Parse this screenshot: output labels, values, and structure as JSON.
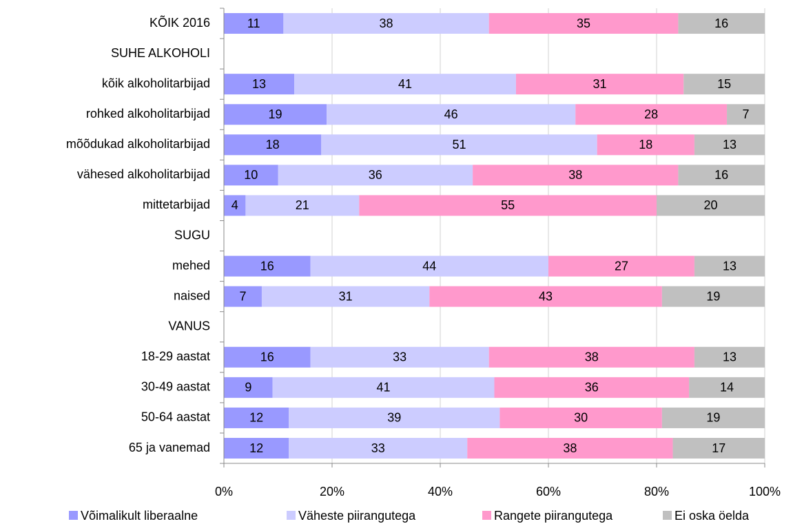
{
  "chart_data": {
    "type": "stacked-bar-horizontal",
    "categories": [
      "KÕIK 2016",
      "SUHE ALKOHOLI",
      "kõik alkoholitarbijad",
      "rohked alkoholitarbijad",
      "mõõdukad alkoholitarbijad",
      "vähesed alkoholitarbijad",
      "mittetarbijad",
      "SUGU",
      "mehed",
      "naised",
      "VANUS",
      "18-29 aastat",
      "30-49 aastat",
      "50-64 aastat",
      "65 ja vanemad"
    ],
    "series": [
      {
        "name": "Võimalikult liberaalne",
        "color": "#9999ff",
        "values": [
          11,
          null,
          13,
          19,
          18,
          10,
          4,
          null,
          16,
          7,
          null,
          16,
          9,
          12,
          12
        ]
      },
      {
        "name": "Väheste piirangutega",
        "color": "#ccccff",
        "values": [
          38,
          null,
          41,
          46,
          51,
          36,
          21,
          null,
          44,
          31,
          null,
          33,
          41,
          39,
          33
        ]
      },
      {
        "name": "Rangete piirangutega",
        "color": "#ff99cc",
        "values": [
          35,
          null,
          31,
          28,
          18,
          38,
          55,
          null,
          27,
          43,
          null,
          38,
          36,
          30,
          38
        ]
      },
      {
        "name": "Ei oska öelda",
        "color": "#c0c0c0",
        "values": [
          16,
          null,
          15,
          7,
          13,
          16,
          20,
          null,
          13,
          19,
          null,
          13,
          14,
          19,
          17
        ]
      }
    ],
    "xlim": [
      0,
      100
    ],
    "xticks": [
      {
        "value": 0,
        "label": "0%"
      },
      {
        "value": 20,
        "label": "20%"
      },
      {
        "value": 40,
        "label": "40%"
      },
      {
        "value": 60,
        "label": "60%"
      },
      {
        "value": 80,
        "label": "80%"
      },
      {
        "value": 100,
        "label": "100%"
      }
    ],
    "grid": true,
    "legend": "bottom"
  }
}
